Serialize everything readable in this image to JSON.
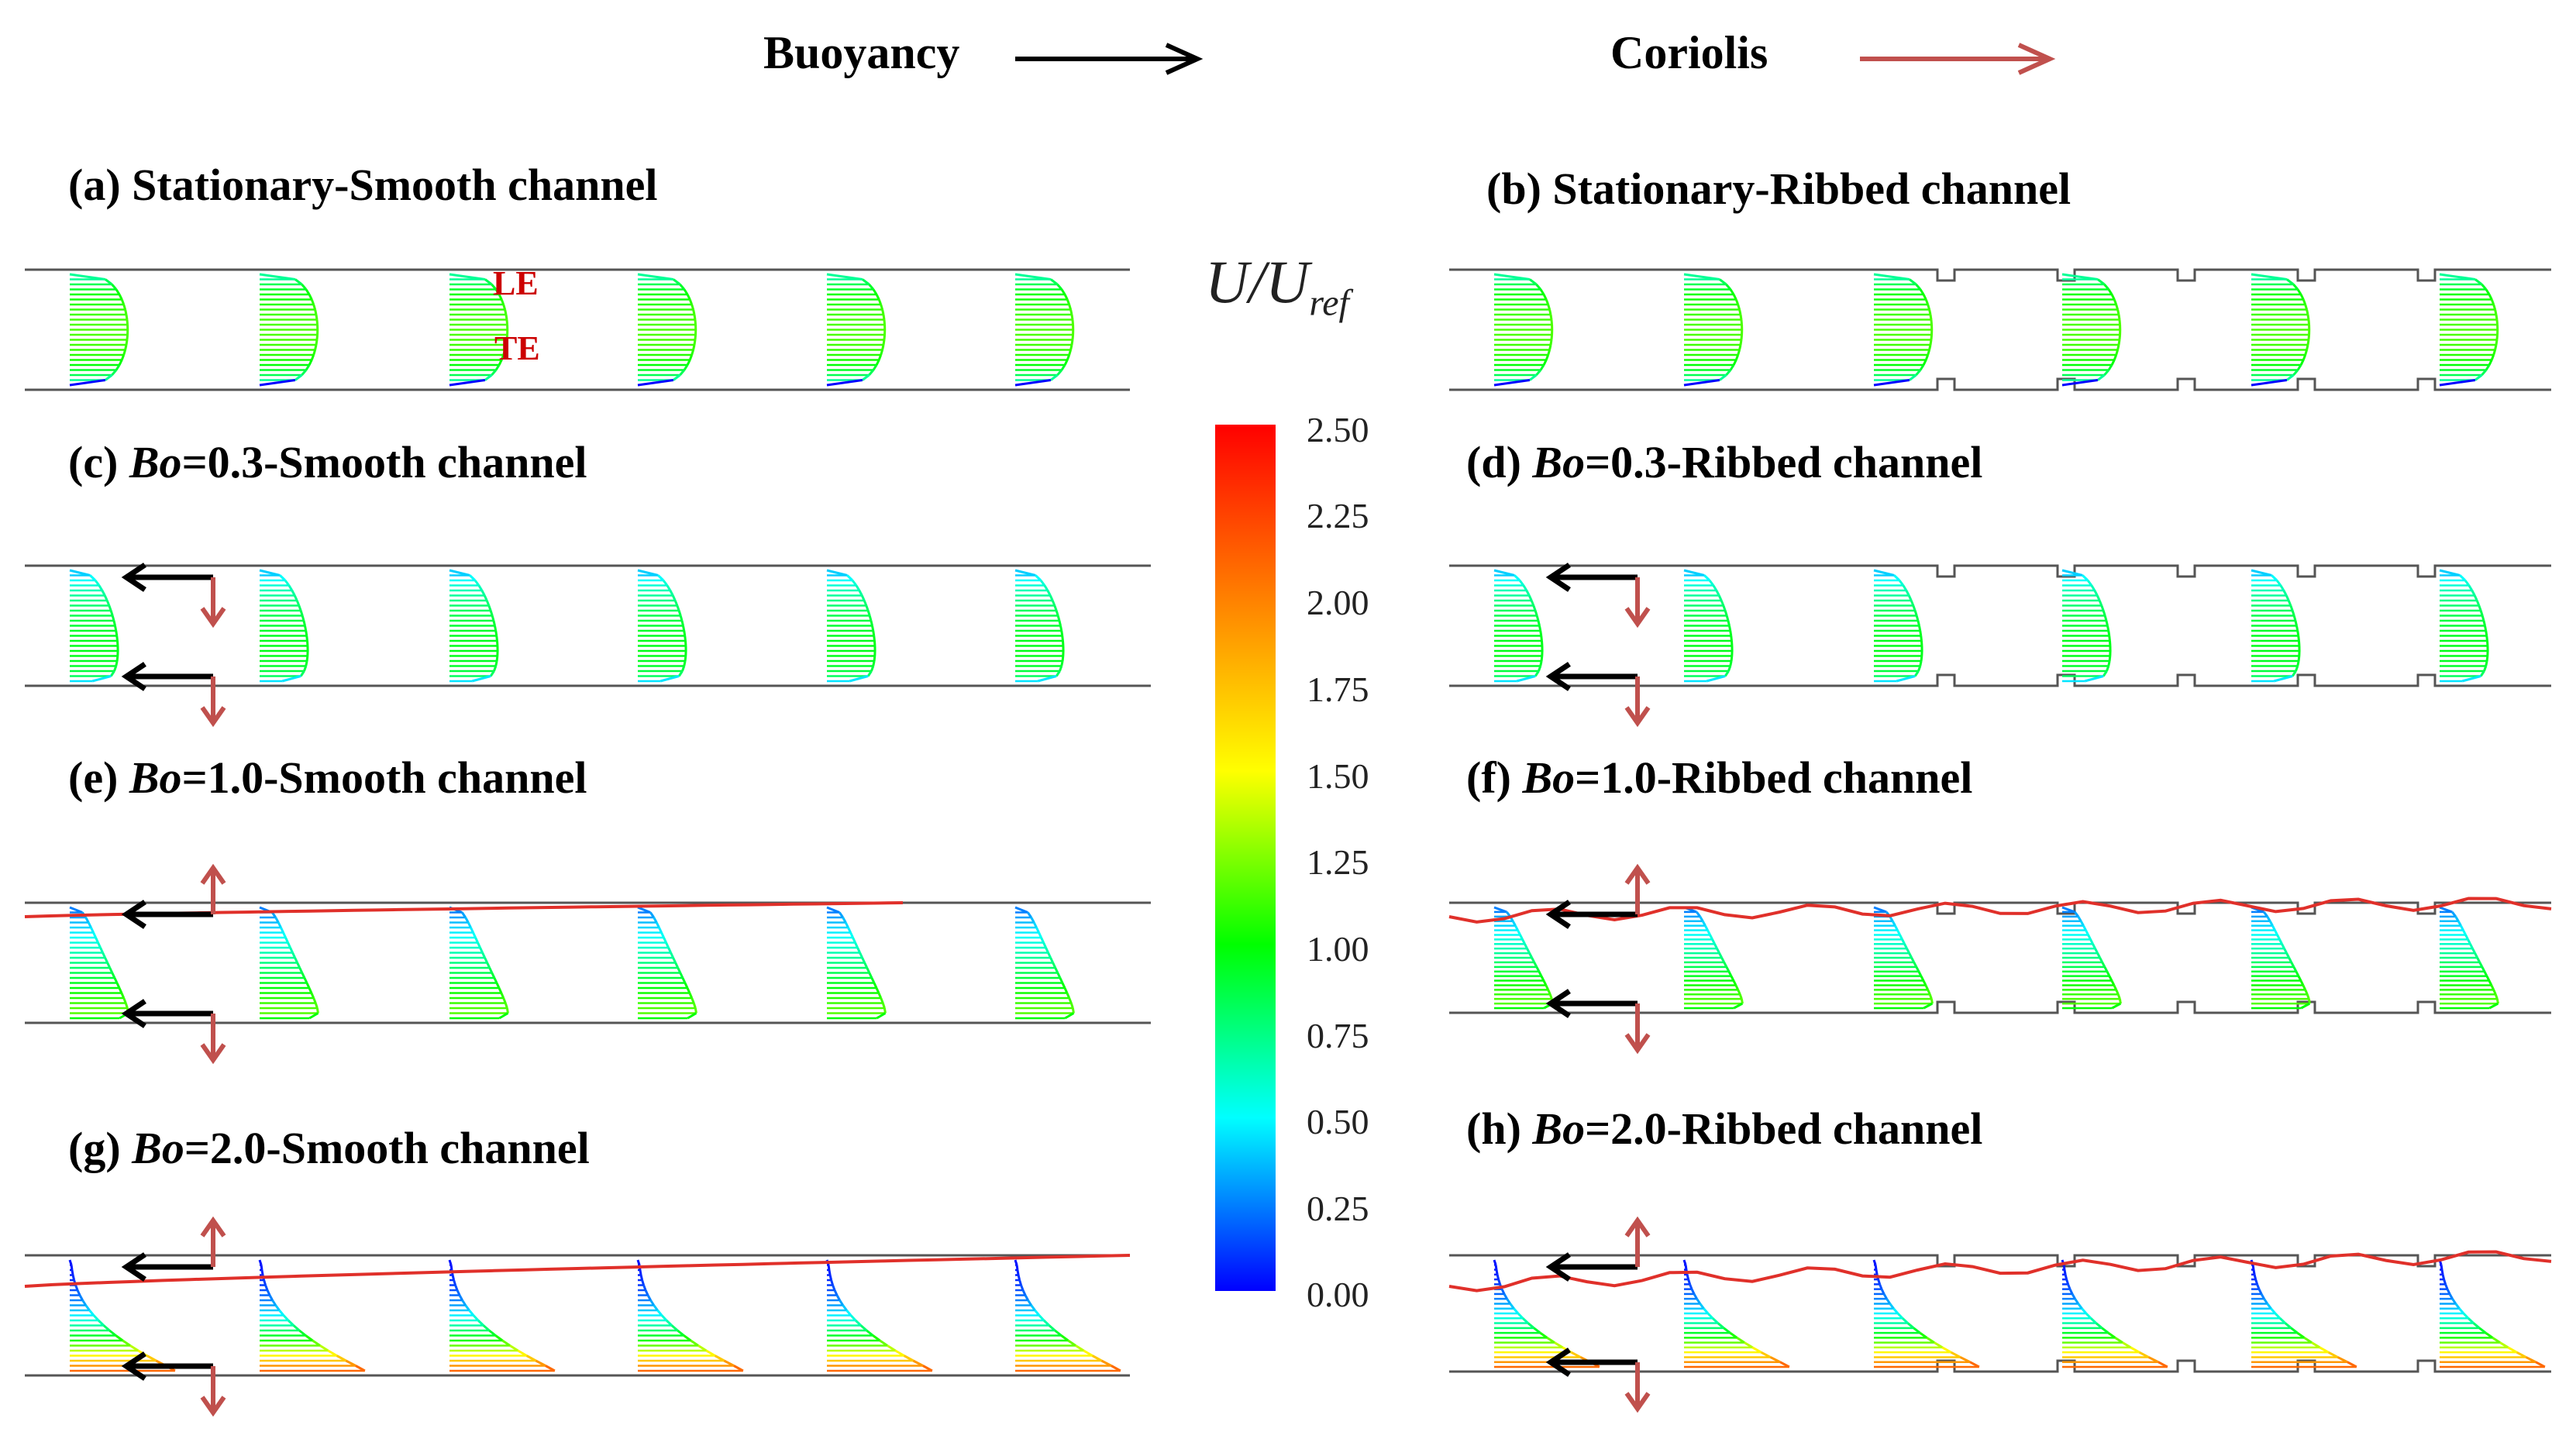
{
  "legend": {
    "buoyancy_label": "Buoyancy",
    "coriolis_label": "Coriolis",
    "buoyancy_color": "#000000",
    "coriolis_color": "#c0504d"
  },
  "panels": [
    {
      "id": "a",
      "prefix": "(a) ",
      "bo": "",
      "suffix": "Stationary-Smooth channel",
      "ribbed": false,
      "bo_value": 0
    },
    {
      "id": "b",
      "prefix": "(b) ",
      "bo": "",
      "suffix": "Stationary-Ribbed channel",
      "ribbed": true,
      "bo_value": 0
    },
    {
      "id": "c",
      "prefix": "(c) ",
      "bo": "Bo",
      "suffix": "=0.3-Smooth channel",
      "ribbed": false,
      "bo_value": 0.3
    },
    {
      "id": "d",
      "prefix": "(d) ",
      "bo": "Bo",
      "suffix": "=0.3-Ribbed channel",
      "ribbed": true,
      "bo_value": 0.3
    },
    {
      "id": "e",
      "prefix": "(e) ",
      "bo": "Bo",
      "suffix": "=1.0-Smooth channel",
      "ribbed": false,
      "bo_value": 1.0
    },
    {
      "id": "f",
      "prefix": "(f) ",
      "bo": "Bo",
      "suffix": "=1.0-Ribbed channel",
      "ribbed": true,
      "bo_value": 1.0
    },
    {
      "id": "g",
      "prefix": "(g) ",
      "bo": "Bo",
      "suffix": "=2.0-Smooth channel",
      "ribbed": false,
      "bo_value": 2.0
    },
    {
      "id": "h",
      "prefix": "(h) ",
      "bo": "Bo",
      "suffix": "=2.0-Ribbed channel",
      "ribbed": true,
      "bo_value": 2.0
    }
  ],
  "wall_labels": {
    "leading": "LE",
    "trailing": "TE"
  },
  "colorbar": {
    "label_main": "U/U",
    "label_sub": "ref",
    "min": 0.0,
    "max": 2.5,
    "ticks": [
      "2.50",
      "2.25",
      "2.00",
      "1.75",
      "1.50",
      "1.25",
      "1.00",
      "0.75",
      "0.50",
      "0.25",
      "0.00"
    ],
    "colors": [
      "#ff0000",
      "#ff8000",
      "#ffff00",
      "#00ff00",
      "#00ffff",
      "#0000ff"
    ]
  }
}
